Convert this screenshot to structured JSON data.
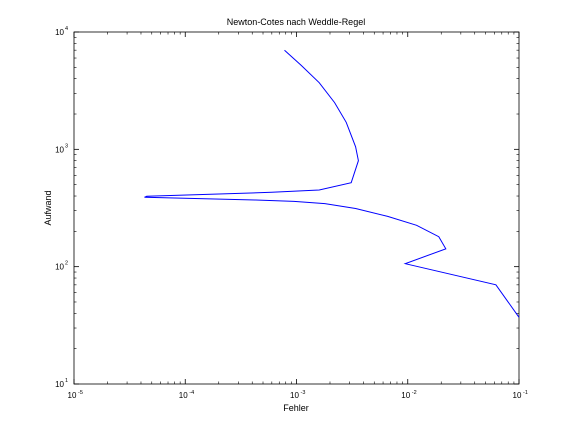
{
  "chart_data": {
    "type": "line",
    "title": "Newton-Cotes nach Weddle-Regel",
    "xlabel": "Fehler",
    "ylabel": "Aufwand",
    "xscale": "log",
    "yscale": "log",
    "xlim": [
      1e-05,
      0.1
    ],
    "ylim": [
      10,
      10000
    ],
    "x_ticks": [
      {
        "value": 1e-05,
        "base": "10",
        "exp": "-5"
      },
      {
        "value": 0.0001,
        "base": "10",
        "exp": "-4"
      },
      {
        "value": 0.001,
        "base": "10",
        "exp": "-3"
      },
      {
        "value": 0.01,
        "base": "10",
        "exp": "-2"
      },
      {
        "value": 0.1,
        "base": "10",
        "exp": "-1"
      }
    ],
    "y_ticks": [
      {
        "value": 10,
        "base": "10",
        "exp": "1"
      },
      {
        "value": 100,
        "base": "10",
        "exp": "2"
      },
      {
        "value": 1000,
        "base": "10",
        "exp": "3"
      },
      {
        "value": 10000,
        "base": "10",
        "exp": "4"
      }
    ],
    "grid": false,
    "line_color": "#0000ff",
    "series": [
      {
        "x": [
          0.1,
          0.062,
          0.0095,
          0.022,
          0.019,
          0.012,
          0.0066,
          0.0034,
          0.0018,
          0.00095,
          0.00043,
          4.3e-05,
          4.5e-05,
          0.0006,
          0.0016,
          0.0031,
          0.0036,
          0.0034,
          0.0028,
          0.0022,
          0.0016,
          0.0011,
          0.00078
        ],
        "y": [
          37,
          70,
          106,
          142,
          180,
          225,
          268,
          313,
          345,
          360,
          370,
          390,
          398,
          430,
          450,
          520,
          800,
          1050,
          1700,
          2500,
          3700,
          5200,
          7000
        ]
      }
    ]
  }
}
